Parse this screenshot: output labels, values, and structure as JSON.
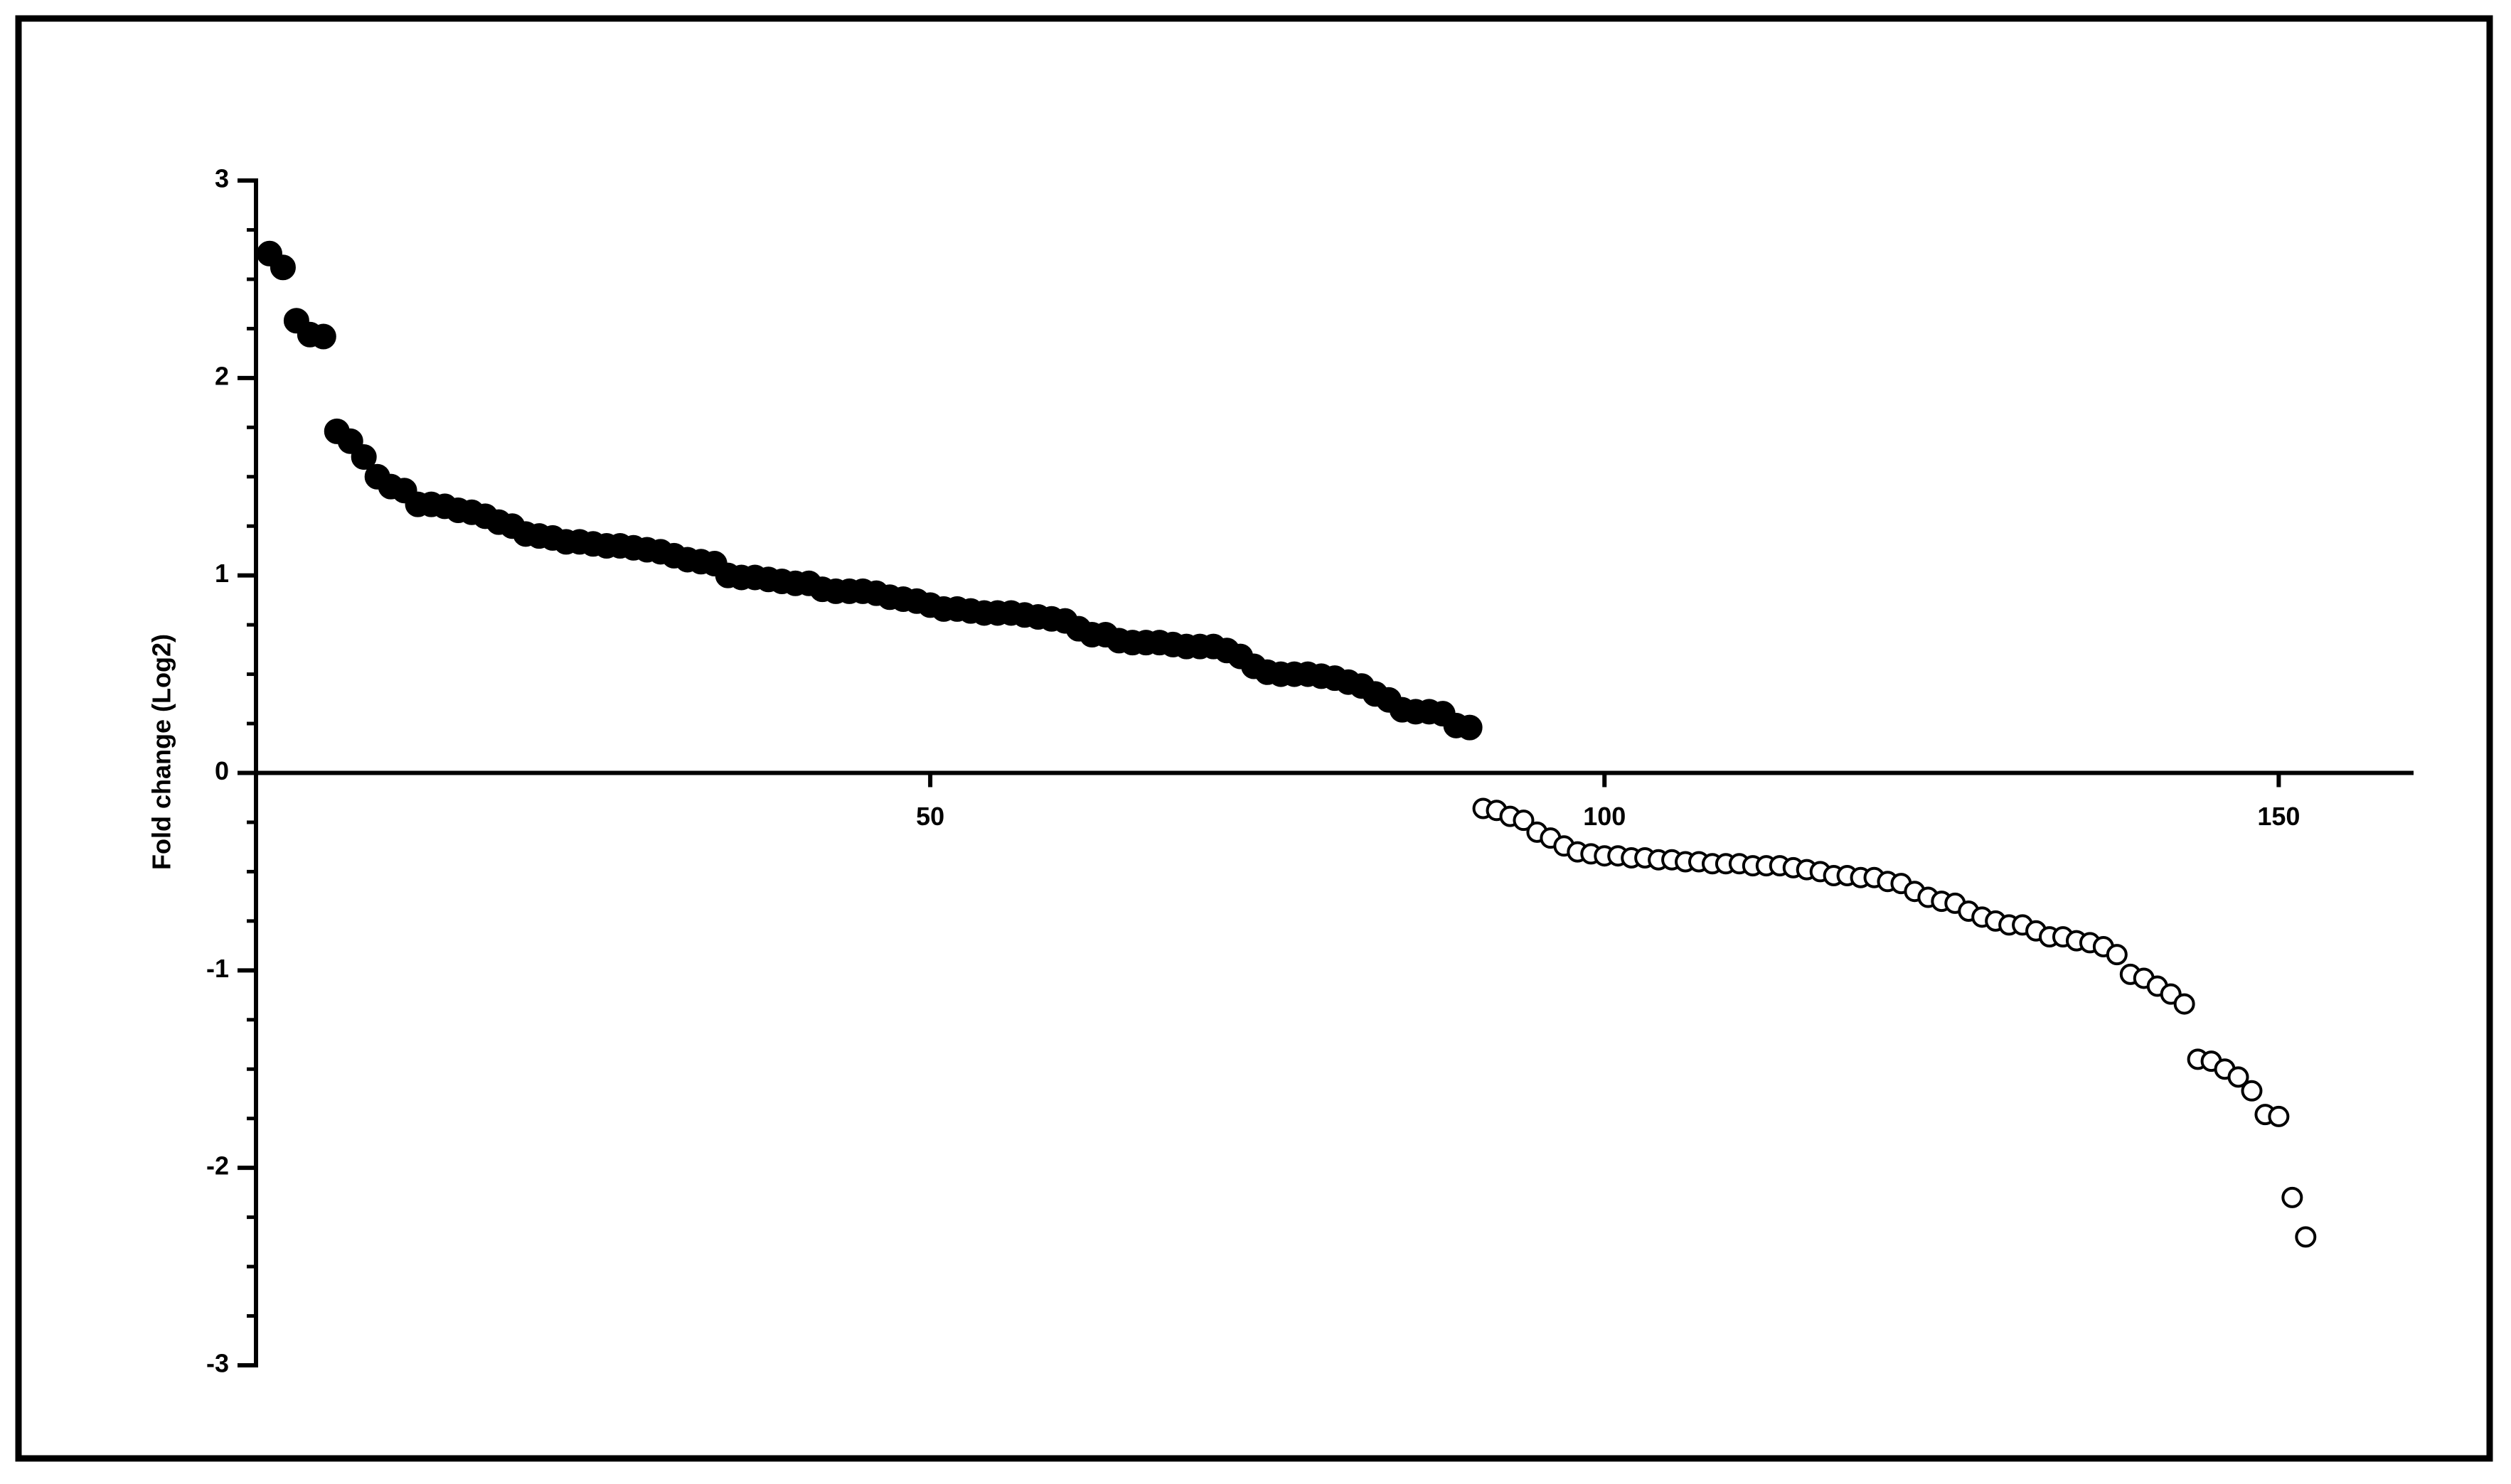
{
  "chart_data": {
    "type": "scatter",
    "ylabel": "Fold change (Log2)",
    "xlim": [
      0,
      160
    ],
    "xticks": [
      50,
      100,
      150
    ],
    "ylim": [
      -3,
      3
    ],
    "yticks": [
      -3,
      -2,
      -1,
      0,
      1,
      2,
      3
    ],
    "yminorticks": [
      -2.75,
      -2.5,
      -2.25,
      -1.75,
      -1.5,
      -1.25,
      -0.75,
      -0.5,
      -0.25,
      0.25,
      0.5,
      0.75,
      1.25,
      1.5,
      1.75,
      2.25,
      2.5,
      2.75
    ],
    "series": [
      {
        "color": "#000000",
        "marker": "filled",
        "x": [
          1,
          2,
          3,
          4,
          5,
          6,
          7,
          8,
          9,
          10,
          11,
          12,
          13,
          14,
          15,
          16,
          17,
          18,
          19,
          20,
          21,
          22,
          23,
          24,
          25,
          26,
          27,
          28,
          29,
          30,
          31,
          32,
          33,
          34,
          35,
          36,
          37,
          38,
          39,
          40,
          41,
          42,
          43,
          44,
          45,
          46,
          47,
          48,
          49,
          50,
          51,
          52,
          53,
          54,
          55,
          56,
          57,
          58,
          59,
          60,
          61,
          62,
          63,
          64,
          65,
          66,
          67,
          68,
          69,
          70,
          71,
          72,
          73,
          74,
          75,
          76,
          77,
          78,
          79,
          80,
          81,
          82,
          83,
          84,
          85,
          86,
          87,
          88,
          89,
          90
        ],
        "values": [
          2.63,
          2.56,
          2.29,
          2.22,
          2.21,
          1.73,
          1.68,
          1.6,
          1.5,
          1.45,
          1.43,
          1.36,
          1.36,
          1.35,
          1.33,
          1.32,
          1.3,
          1.27,
          1.25,
          1.21,
          1.2,
          1.19,
          1.17,
          1.17,
          1.16,
          1.15,
          1.15,
          1.14,
          1.13,
          1.12,
          1.1,
          1.08,
          1.07,
          1.06,
          1.0,
          0.99,
          0.99,
          0.98,
          0.97,
          0.96,
          0.96,
          0.93,
          0.92,
          0.92,
          0.92,
          0.91,
          0.89,
          0.88,
          0.87,
          0.85,
          0.83,
          0.83,
          0.82,
          0.81,
          0.81,
          0.81,
          0.8,
          0.79,
          0.78,
          0.77,
          0.73,
          0.7,
          0.7,
          0.67,
          0.66,
          0.66,
          0.66,
          0.65,
          0.64,
          0.64,
          0.64,
          0.62,
          0.59,
          0.54,
          0.51,
          0.5,
          0.5,
          0.5,
          0.49,
          0.48,
          0.46,
          0.44,
          0.4,
          0.37,
          0.32,
          0.31,
          0.31,
          0.3,
          0.24,
          0.23
        ]
      },
      {
        "color": "#000000",
        "marker": "open",
        "x": [
          91,
          92,
          93,
          94,
          95,
          96,
          97,
          98,
          99,
          100,
          101,
          102,
          103,
          104,
          105,
          106,
          107,
          108,
          109,
          110,
          111,
          112,
          113,
          114,
          115,
          116,
          117,
          118,
          119,
          120,
          121,
          122,
          123,
          124,
          125,
          126,
          127,
          128,
          129,
          130,
          131,
          132,
          133,
          134,
          135,
          136,
          137,
          138,
          139,
          140,
          141,
          142,
          143,
          144,
          145,
          146,
          147,
          148,
          149,
          150,
          151,
          152
        ],
        "values": [
          -0.18,
          -0.19,
          -0.22,
          -0.24,
          -0.3,
          -0.33,
          -0.37,
          -0.4,
          -0.41,
          -0.42,
          -0.42,
          -0.43,
          -0.43,
          -0.44,
          -0.44,
          -0.45,
          -0.45,
          -0.46,
          -0.46,
          -0.46,
          -0.47,
          -0.47,
          -0.47,
          -0.48,
          -0.49,
          -0.5,
          -0.52,
          -0.52,
          -0.53,
          -0.53,
          -0.55,
          -0.56,
          -0.6,
          -0.63,
          -0.65,
          -0.66,
          -0.7,
          -0.73,
          -0.75,
          -0.77,
          -0.77,
          -0.8,
          -0.83,
          -0.83,
          -0.85,
          -0.86,
          -0.88,
          -0.92,
          -1.02,
          -1.04,
          -1.08,
          -1.12,
          -1.17,
          -1.45,
          -1.46,
          -1.5,
          -1.54,
          -1.61,
          -1.73,
          -1.74,
          -2.15,
          -2.35
        ]
      }
    ]
  }
}
